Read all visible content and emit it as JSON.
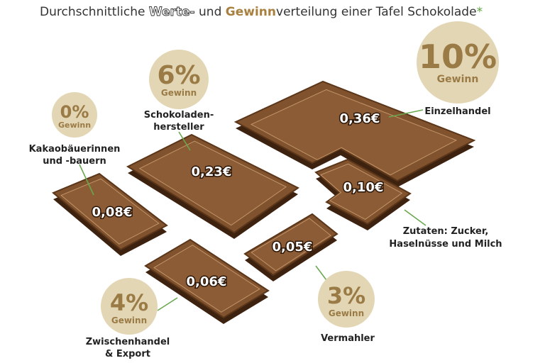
{
  "subtitle": {
    "parts": [
      "Durchschnittliche ",
      "Werte-",
      " und ",
      "Gewinn",
      "verteilung einer Tafel Schokolade",
      "*"
    ]
  },
  "segments": [
    {
      "label": [
        "Kakaobäuerinnen",
        "und -bauern"
      ],
      "value": "0,08€",
      "profit": "0%",
      "profit_label": "Gewinn"
    },
    {
      "label": [
        "Schokoladen-",
        "hersteller"
      ],
      "value": "0,23€",
      "profit": "6%",
      "profit_label": "Gewinn"
    },
    {
      "label": [
        "Einzelhandel"
      ],
      "value": "0,36€",
      "profit": "10%",
      "profit_label": "Gewinn"
    },
    {
      "label": [
        "Zutaten: Zucker,",
        "Haselnüsse und Milch"
      ],
      "value": "0,10€"
    },
    {
      "label": [
        "Vermahler"
      ],
      "value": "0,05€",
      "profit": "3%",
      "profit_label": "Gewinn"
    },
    {
      "label": [
        "Zwischenhandel",
        "& Export"
      ],
      "value": "0,06€",
      "profit": "4%",
      "profit_label": "Gewinn"
    }
  ]
}
